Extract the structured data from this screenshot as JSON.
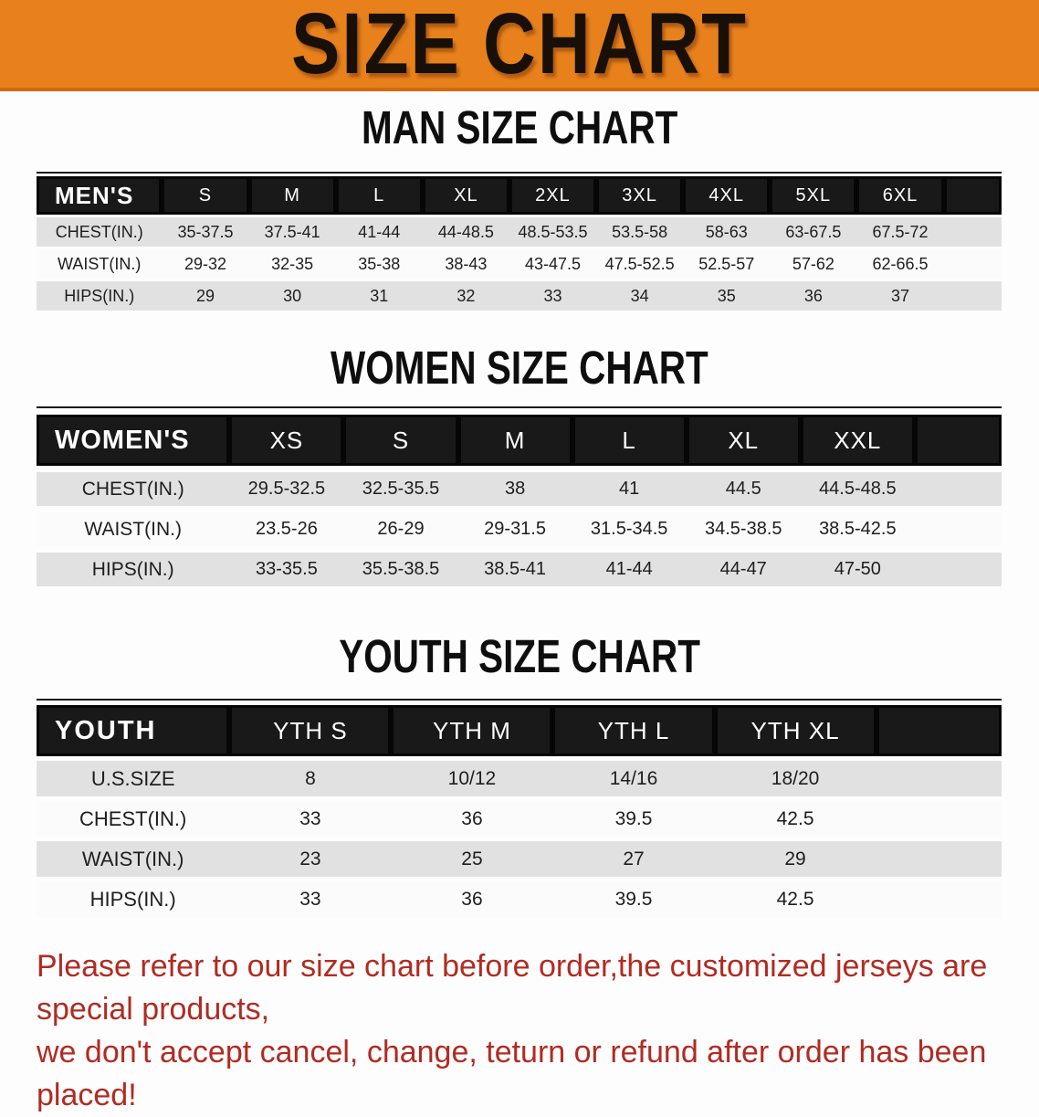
{
  "banner": {
    "title": "SIZE CHART",
    "background_color": "#e8811c",
    "text_color": "#181008"
  },
  "sections": [
    {
      "title": "MAN SIZE CHART",
      "header_label": "MEN'S",
      "columns": [
        "S",
        "M",
        "L",
        "XL",
        "2XL",
        "3XL",
        "4XL",
        "5XL",
        "6XL"
      ],
      "rows": [
        {
          "label": "CHEST(IN.)",
          "values": [
            "35-37.5",
            "37.5-41",
            "41-44",
            "44-48.5",
            "48.5-53.5",
            "53.5-58",
            "58-63",
            "63-67.5",
            "67.5-72"
          ]
        },
        {
          "label": "WAIST(IN.)",
          "values": [
            "29-32",
            "32-35",
            "35-38",
            "38-43",
            "43-47.5",
            "47.5-52.5",
            "52.5-57",
            "57-62",
            "62-66.5"
          ]
        },
        {
          "label": "HIPS(IN.)",
          "values": [
            "29",
            "30",
            "31",
            "32",
            "33",
            "34",
            "35",
            "36",
            "37"
          ]
        }
      ]
    },
    {
      "title": "WOMEN SIZE CHART",
      "header_label": "WOMEN'S",
      "columns": [
        "XS",
        "S",
        "M",
        "L",
        "XL",
        "XXL"
      ],
      "rows": [
        {
          "label": "CHEST(IN.)",
          "values": [
            "29.5-32.5",
            "32.5-35.5",
            "38",
            "41",
            "44.5",
            "44.5-48.5"
          ]
        },
        {
          "label": "WAIST(IN.)",
          "values": [
            "23.5-26",
            "26-29",
            "29-31.5",
            "31.5-34.5",
            "34.5-38.5",
            "38.5-42.5"
          ]
        },
        {
          "label": "HIPS(IN.)",
          "values": [
            "33-35.5",
            "35.5-38.5",
            "38.5-41",
            "41-44",
            "44-47",
            "47-50"
          ]
        }
      ]
    },
    {
      "title": "YOUTH SIZE CHART",
      "header_label": "YOUTH",
      "columns": [
        "YTH S",
        "YTH M",
        "YTH L",
        "YTH XL"
      ],
      "rows": [
        {
          "label": "U.S.SIZE",
          "values": [
            "8",
            "10/12",
            "14/16",
            "18/20"
          ]
        },
        {
          "label": "CHEST(IN.)",
          "values": [
            "33",
            "36",
            "39.5",
            "42.5"
          ]
        },
        {
          "label": "WAIST(IN.)",
          "values": [
            "23",
            "25",
            "27",
            "29"
          ]
        },
        {
          "label": "HIPS(IN.)",
          "values": [
            "33",
            "36",
            "39.5",
            "42.5"
          ]
        }
      ]
    }
  ],
  "footer": {
    "line1": "Please refer to our size chart before order,the customized jerseys are special products,",
    "line2": "we don't accept cancel, change, teturn or refund after order has been placed!",
    "text_color": "#b12b22"
  },
  "table_style_colors": {
    "header_background": "#191919",
    "header_text": "#ffffff",
    "row_shaded": "#e1e1e1",
    "row_plain": "#fbfbfb"
  }
}
